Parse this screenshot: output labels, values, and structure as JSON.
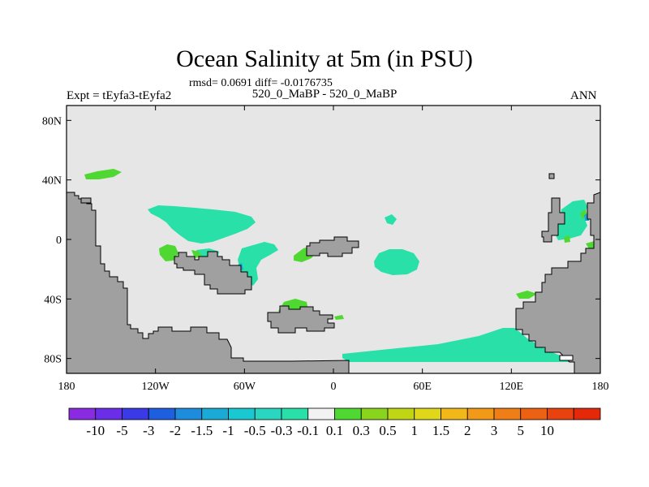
{
  "title": "Ocean Salinity at 5m (in PSU)",
  "stats": "rmsd= 0.0691 diff= -0.0176735",
  "left_label": "Expt = tEyfa3-tEyfa2",
  "center_label": "520_0_MaBP - 520_0_MaBP",
  "right_label": "ANN",
  "map": {
    "projection": "cylindrical equidistant",
    "lon_range": [
      -180,
      180
    ],
    "lat_range": [
      -90,
      90
    ],
    "x_ticks": [
      {
        "value": -180,
        "label": "180"
      },
      {
        "value": -120,
        "label": "120W"
      },
      {
        "value": -60,
        "label": "60W"
      },
      {
        "value": 0,
        "label": "0"
      },
      {
        "value": 60,
        "label": "60E"
      },
      {
        "value": 120,
        "label": "120E"
      },
      {
        "value": 180,
        "label": "180"
      }
    ],
    "y_ticks": [
      {
        "value": 80,
        "label": "80N"
      },
      {
        "value": 40,
        "label": "40N"
      },
      {
        "value": 0,
        "label": "0"
      },
      {
        "value": -40,
        "label": "40S"
      },
      {
        "value": -80,
        "label": "80S"
      }
    ],
    "colors": {
      "ocean_background": "#e6e6e6",
      "land": "#a0a0a0",
      "coast_line": "#000000"
    }
  },
  "colorbar": {
    "colors": [
      "#8a2be2",
      "#6a2ee8",
      "#3a3ae6",
      "#1e5fe0",
      "#1e8cdc",
      "#19aad6",
      "#19c8d0",
      "#2ad6c0",
      "#28e0a8",
      "#f2f2f2",
      "#50d832",
      "#8ad41e",
      "#c0d614",
      "#e0d61a",
      "#f2b81a",
      "#f29a18",
      "#f07e16",
      "#ec6212",
      "#e8420e",
      "#e4280a"
    ],
    "labels": [
      "-10",
      "-5",
      "-3",
      "-2",
      "-1.5",
      "-1",
      "-0.5",
      "-0.3",
      "-0.1",
      "0.1",
      "0.3",
      "0.5",
      "1",
      "1.5",
      "2",
      "3",
      "5",
      "10"
    ]
  }
}
